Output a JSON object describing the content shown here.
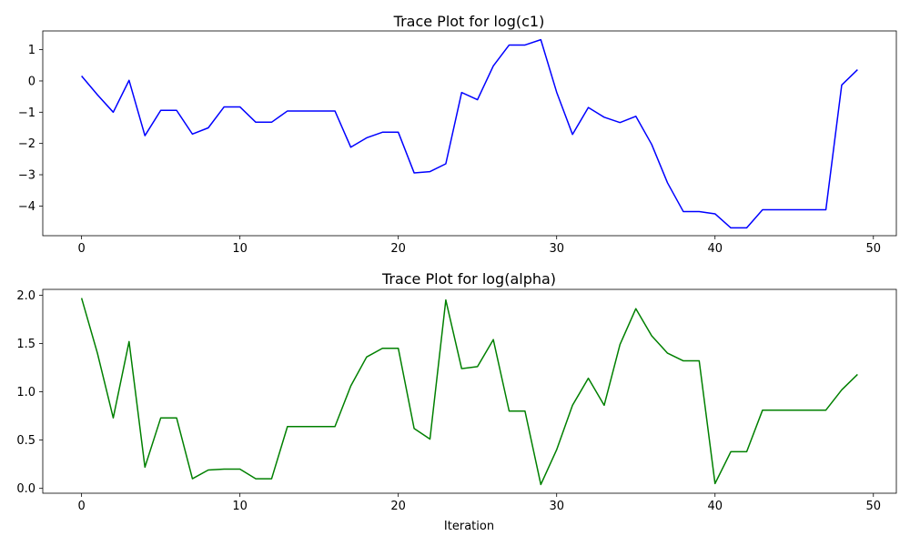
{
  "chart_data": [
    {
      "type": "line",
      "title": "Trace Plot for log(c1)",
      "xlabel": "",
      "ylabel": "",
      "xlim": [
        -2.45,
        51.45
      ],
      "ylim": [
        -4.95,
        1.6
      ],
      "xticks": [
        0,
        10,
        20,
        30,
        40,
        50
      ],
      "yticks": [
        -4,
        -3,
        -2,
        -1,
        0,
        1
      ],
      "grid": false,
      "color": "#0000ff",
      "x": [
        0,
        1,
        2,
        3,
        4,
        5,
        6,
        7,
        8,
        9,
        10,
        11,
        12,
        13,
        14,
        15,
        16,
        17,
        18,
        19,
        20,
        21,
        22,
        23,
        24,
        25,
        26,
        27,
        28,
        29,
        30,
        31,
        32,
        33,
        34,
        35,
        36,
        37,
        38,
        39,
        40,
        41,
        42,
        43,
        44,
        45,
        46,
        47,
        48,
        49
      ],
      "values": [
        0.16,
        -0.44,
        -1.0,
        0.02,
        -1.75,
        -0.94,
        -0.94,
        -1.7,
        -1.5,
        -0.83,
        -0.83,
        -1.32,
        -1.32,
        -0.96,
        -0.96,
        -0.96,
        -0.96,
        -2.12,
        -1.82,
        -1.64,
        -1.64,
        -2.94,
        -2.9,
        -2.65,
        -0.37,
        -0.6,
        0.48,
        1.15,
        1.15,
        1.32,
        -0.36,
        -1.71,
        -0.85,
        -1.16,
        -1.33,
        -1.13,
        -2.03,
        -3.26,
        -4.18,
        -4.18,
        -4.25,
        -4.7,
        -4.7,
        -4.12,
        -4.12,
        -4.12,
        -4.12,
        -4.12,
        -0.13,
        0.36
      ]
    },
    {
      "type": "line",
      "title": "Trace Plot for log(alpha)",
      "xlabel": "Iteration",
      "ylabel": "",
      "xlim": [
        -2.45,
        51.45
      ],
      "ylim": [
        -0.05,
        2.06
      ],
      "xticks": [
        0,
        10,
        20,
        30,
        40,
        50
      ],
      "yticks": [
        "0.0",
        "0.5",
        "1.0",
        "1.5",
        "2.0"
      ],
      "grid": false,
      "color": "#008000",
      "x": [
        0,
        1,
        2,
        3,
        4,
        5,
        6,
        7,
        8,
        9,
        10,
        11,
        12,
        13,
        14,
        15,
        16,
        17,
        18,
        19,
        20,
        21,
        22,
        23,
        24,
        25,
        26,
        27,
        28,
        29,
        30,
        31,
        32,
        33,
        34,
        35,
        36,
        37,
        38,
        39,
        40,
        41,
        42,
        43,
        44,
        45,
        46,
        47,
        48,
        49
      ],
      "values": [
        1.97,
        1.4,
        0.73,
        1.52,
        0.22,
        0.73,
        0.73,
        0.1,
        0.19,
        0.2,
        0.2,
        0.1,
        0.1,
        0.64,
        0.64,
        0.64,
        0.64,
        1.06,
        1.36,
        1.45,
        1.45,
        0.62,
        0.51,
        1.95,
        1.24,
        1.26,
        1.54,
        0.8,
        0.8,
        0.04,
        0.4,
        0.86,
        1.14,
        0.86,
        1.49,
        1.86,
        1.58,
        1.4,
        1.32,
        1.32,
        0.05,
        0.38,
        0.38,
        0.81,
        0.81,
        0.81,
        0.81,
        0.81,
        1.02,
        1.18
      ]
    }
  ]
}
